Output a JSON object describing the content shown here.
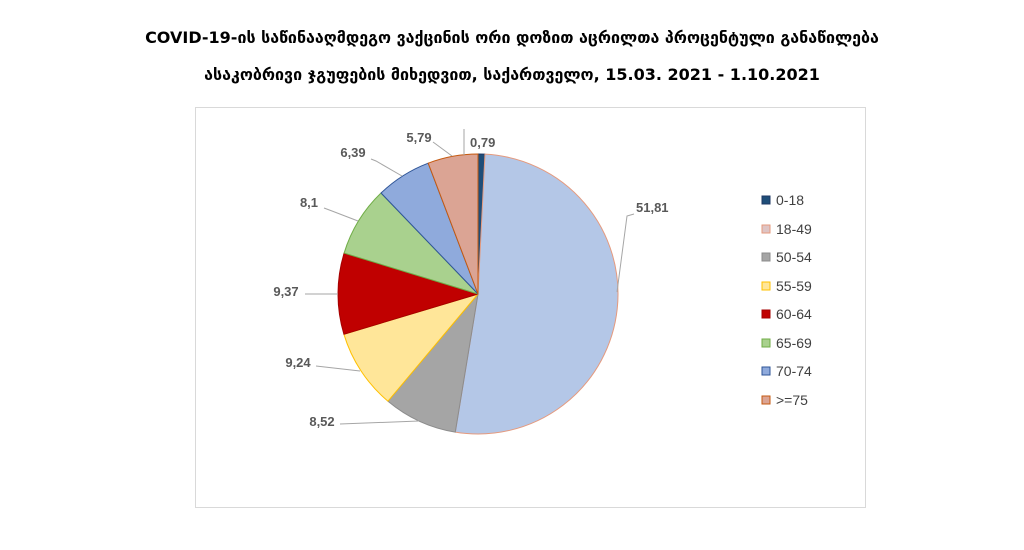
{
  "chart_data": {
    "type": "pie",
    "title": [
      "COVID-19-ის საწინააღმდეგო ვაქცინის ორი დოზით აცრილთა პროცენტული განაწილება",
      "ასაკობრივი ჯგუფების მიხედვით, საქართველო, 15.03. 2021 - 1.10.2021"
    ],
    "legend": "right",
    "grid": false,
    "slices": [
      {
        "category": "0-18",
        "value": 0.79,
        "label": "0,79",
        "color": "#1F4E79",
        "border": "#1F3864",
        "legend_color": "#1F4E79"
      },
      {
        "category": "18-49",
        "value": 51.81,
        "label": "51,81",
        "color": "#B4C7E7",
        "border": "#E59A7E",
        "legend_color": "#DEC4C4"
      },
      {
        "category": "50-54",
        "value": 8.52,
        "label": "8,52",
        "color": "#A5A5A5",
        "border": "#8C8C8C",
        "legend_color": "#A5A5A5"
      },
      {
        "category": "55-59",
        "value": 9.24,
        "label": "9,24",
        "color": "#FFE699",
        "border": "#FFC000",
        "legend_color": "#FFE699"
      },
      {
        "category": "60-64",
        "value": 9.37,
        "label": "9,37",
        "color": "#C00000",
        "border": "#A50000",
        "legend_color": "#C00000"
      },
      {
        "category": "65-69",
        "value": 8.1,
        "label": "8,1",
        "color": "#A9D18E",
        "border": "#70AD47",
        "legend_color": "#A9D18E"
      },
      {
        "category": "70-74",
        "value": 6.39,
        "label": "6,39",
        "color": "#8FAADC",
        "border": "#2F5597",
        "legend_color": "#8FAADC"
      },
      {
        "category": ">=75",
        "value": 5.79,
        "label": "5,79",
        "color": "#DBA494",
        "border": "#C55A11",
        "legend_color": "#DBA494"
      }
    ]
  }
}
